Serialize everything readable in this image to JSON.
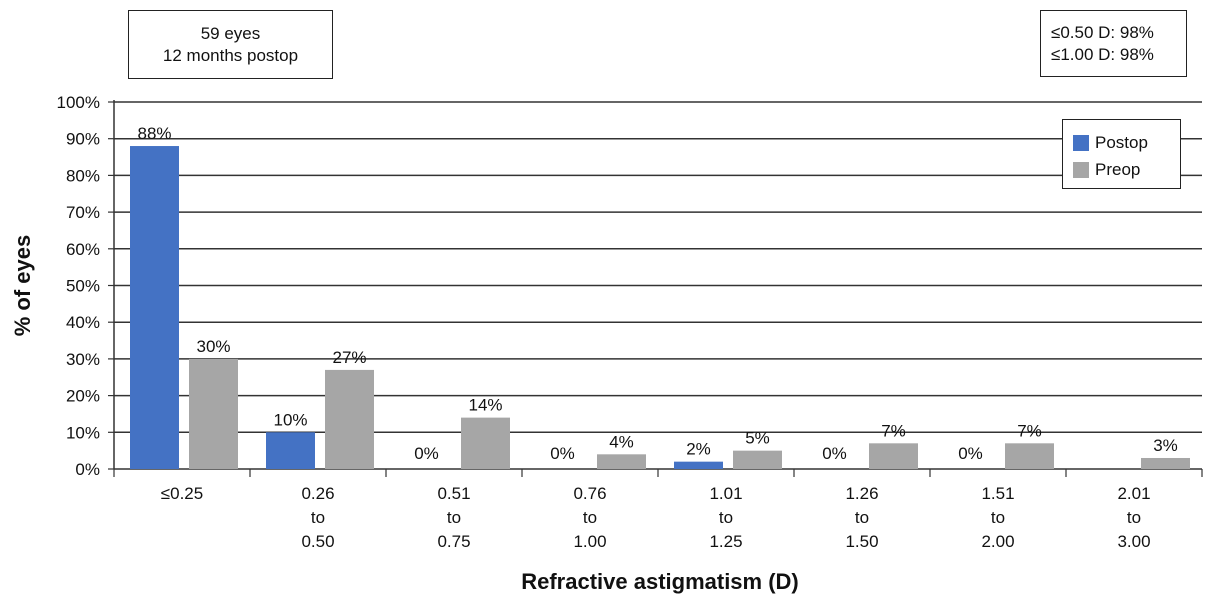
{
  "info_box": {
    "line1": "59 eyes",
    "line2": "12 months postop"
  },
  "accuracy_box": {
    "line1": "≤0.50 D: 98%",
    "line2": "≤1.00 D: 98%"
  },
  "colors": {
    "postop": "#4472c4",
    "preop": "#a6a6a6",
    "grid": "#333333"
  },
  "chart_data": {
    "type": "bar",
    "xlabel": "Refractive astigmatism (D)",
    "ylabel": "% of eyes",
    "ylim": [
      0,
      100
    ],
    "yticks": [
      "0%",
      "10%",
      "20%",
      "30%",
      "40%",
      "50%",
      "60%",
      "70%",
      "80%",
      "90%",
      "100%"
    ],
    "grid": true,
    "legend_position": "top-right",
    "categories": [
      [
        "≤0.25"
      ],
      [
        "0.26",
        "to",
        "0.50"
      ],
      [
        "0.51",
        "to",
        "0.75"
      ],
      [
        "0.76",
        "to",
        "1.00"
      ],
      [
        "1.01",
        "to",
        "1.25"
      ],
      [
        "1.26",
        "to",
        "1.50"
      ],
      [
        "1.51",
        "to",
        "2.00"
      ],
      [
        "2.01",
        "to",
        "3.00"
      ]
    ],
    "series": [
      {
        "name": "Postop",
        "values": [
          88,
          10,
          0,
          0,
          2,
          0,
          0,
          null
        ],
        "labels": [
          "88%",
          "10%",
          "0%",
          "0%",
          "2%",
          "0%",
          "0%",
          ""
        ]
      },
      {
        "name": "Preop",
        "values": [
          30,
          27,
          14,
          4,
          5,
          7,
          7,
          3
        ],
        "labels": [
          "30%",
          "27%",
          "14%",
          "4%",
          "5%",
          "7%",
          "7%",
          "3%"
        ]
      }
    ]
  }
}
